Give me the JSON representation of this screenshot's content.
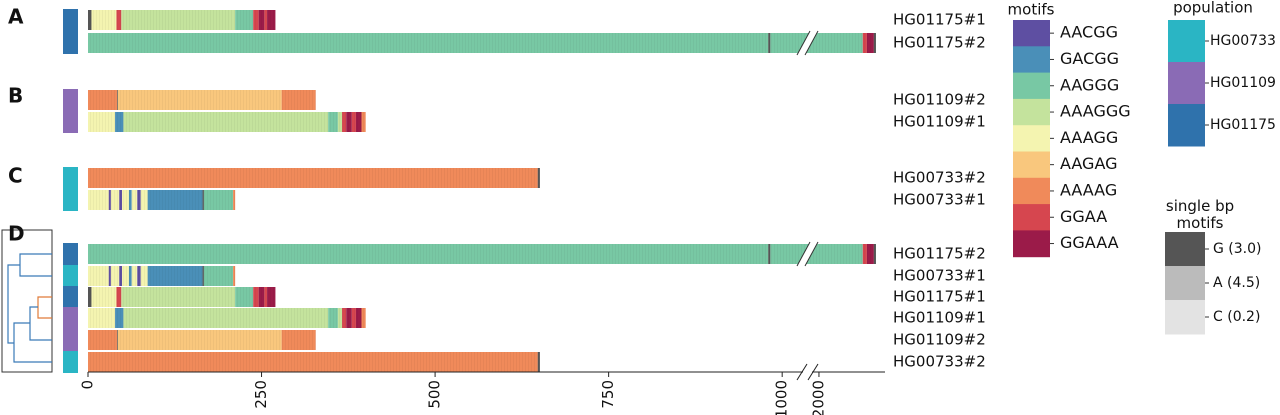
{
  "chart_data": {
    "type": "repeat-structure",
    "motifs_title": "motifs",
    "motifs": [
      {
        "name": "AACGG",
        "color": "#5e4fa2"
      },
      {
        "name": "GACGG",
        "color": "#4a8fb8"
      },
      {
        "name": "AAGGG",
        "color": "#78c8a4"
      },
      {
        "name": "AAAGGG",
        "color": "#c4e39d"
      },
      {
        "name": "AAAGG",
        "color": "#f4f4b0"
      },
      {
        "name": "AAGAG",
        "color": "#f9c77d"
      },
      {
        "name": "AAAAG",
        "color": "#f08a5a"
      },
      {
        "name": "GGAA",
        "color": "#d6464f"
      },
      {
        "name": "GGAAA",
        "color": "#9b1b49"
      }
    ],
    "population_title": "population",
    "populations": [
      {
        "name": "HG00733",
        "color": "#2ab5c4"
      },
      {
        "name": "HG01109",
        "color": "#8a6bb5"
      },
      {
        "name": "HG01175",
        "color": "#2f72ac"
      }
    ],
    "single_bp_title": "single bp motifs",
    "single_bp_motifs": [
      {
        "label": "G (3.0)",
        "color": "#555555"
      },
      {
        "label": "A (4.5)",
        "color": "#bbbbbb"
      },
      {
        "label": "C (0.2)",
        "color": "#e3e3e3"
      }
    ],
    "xlim": [
      0,
      2095
    ],
    "x_break": [
      1030,
      1990
    ],
    "xticks": [
      0,
      250,
      500,
      750,
      1000,
      2000
    ],
    "panels": [
      {
        "label": "A",
        "rows": [
          {
            "name": "HG01175#1",
            "population": 2,
            "segments": [
              {
                "single": 0,
                "bp": 5
              },
              {
                "motif": 4,
                "bp": 36
              },
              {
                "motif": 7,
                "bp": 7
              },
              {
                "motif": 3,
                "bp": 164
              },
              {
                "motif": 2,
                "bp": 26
              },
              {
                "motif": 7,
                "bp": 8
              },
              {
                "motif": 8,
                "bp": 8
              },
              {
                "motif": 7,
                "bp": 4
              },
              {
                "motif": 8,
                "bp": 12
              }
            ]
          },
          {
            "name": "HG01175#2",
            "population": 2,
            "segments": [
              {
                "motif": 2,
                "bp": 980
              },
              {
                "single": 0,
                "bp": 3
              },
              {
                "motif": 2,
                "bp": 1080
              },
              {
                "motif": 7,
                "bp": 6
              },
              {
                "motif": 8,
                "bp": 10
              },
              {
                "single": 0,
                "bp": 3
              }
            ]
          }
        ]
      },
      {
        "label": "B",
        "rows": [
          {
            "name": "HG01109#2",
            "population": 1,
            "segments": [
              {
                "motif": 6,
                "bp": 42
              },
              {
                "single": 0,
                "bp": 1
              },
              {
                "motif": 5,
                "bp": 236
              },
              {
                "motif": 6,
                "bp": 49
              }
            ]
          },
          {
            "name": "HG01109#1",
            "population": 1,
            "segments": [
              {
                "motif": 4,
                "bp": 39
              },
              {
                "motif": 1,
                "bp": 12
              },
              {
                "motif": 3,
                "bp": 295
              },
              {
                "motif": 2,
                "bp": 14
              },
              {
                "motif": 3,
                "bp": 6
              },
              {
                "motif": 7,
                "bp": 6
              },
              {
                "motif": 8,
                "bp": 8
              },
              {
                "motif": 7,
                "bp": 6
              },
              {
                "motif": 8,
                "bp": 8
              },
              {
                "motif": 6,
                "bp": 6
              }
            ]
          }
        ]
      },
      {
        "label": "C",
        "rows": [
          {
            "name": "HG00733#2",
            "population": 0,
            "segments": [
              {
                "motif": 6,
                "bp": 648
              },
              {
                "single": 0,
                "bp": 3
              }
            ]
          },
          {
            "name": "HG00733#1",
            "population": 0,
            "segments": [
              {
                "motif": 4,
                "bp": 30
              },
              {
                "motif": 0,
                "bp": 3
              },
              {
                "motif": 4,
                "bp": 12
              },
              {
                "motif": 0,
                "bp": 4
              },
              {
                "motif": 4,
                "bp": 10
              },
              {
                "motif": 1,
                "bp": 4
              },
              {
                "motif": 4,
                "bp": 8
              },
              {
                "motif": 0,
                "bp": 5
              },
              {
                "motif": 4,
                "bp": 10
              },
              {
                "motif": 1,
                "bp": 79
              },
              {
                "single": 0,
                "bp": 2
              },
              {
                "motif": 2,
                "bp": 42
              },
              {
                "motif": 6,
                "bp": 3
              }
            ]
          }
        ]
      },
      {
        "label": "D",
        "rows_from": [
          [
            0,
            1
          ],
          [
            2,
            1
          ],
          [
            0,
            0
          ],
          [
            1,
            1
          ],
          [
            1,
            0
          ],
          [
            2,
            0
          ]
        ]
      }
    ]
  }
}
